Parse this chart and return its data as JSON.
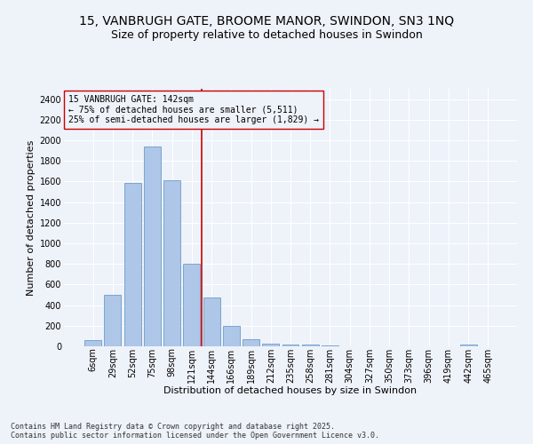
{
  "title1": "15, VANBRUGH GATE, BROOME MANOR, SWINDON, SN3 1NQ",
  "title2": "Size of property relative to detached houses in Swindon",
  "xlabel": "Distribution of detached houses by size in Swindon",
  "ylabel": "Number of detached properties",
  "annotation_line1": "15 VANBRUGH GATE: 142sqm",
  "annotation_line2": "← 75% of detached houses are smaller (5,511)",
  "annotation_line3": "25% of semi-detached houses are larger (1,829) →",
  "footer1": "Contains HM Land Registry data © Crown copyright and database right 2025.",
  "footer2": "Contains public sector information licensed under the Open Government Licence v3.0.",
  "categories": [
    "6sqm",
    "29sqm",
    "52sqm",
    "75sqm",
    "98sqm",
    "121sqm",
    "144sqm",
    "166sqm",
    "189sqm",
    "212sqm",
    "235sqm",
    "258sqm",
    "281sqm",
    "304sqm",
    "327sqm",
    "350sqm",
    "373sqm",
    "396sqm",
    "419sqm",
    "442sqm",
    "465sqm"
  ],
  "values": [
    60,
    500,
    1590,
    1940,
    1610,
    800,
    470,
    195,
    70,
    30,
    20,
    15,
    10,
    0,
    0,
    0,
    0,
    0,
    0,
    20,
    0
  ],
  "bar_color": "#aec6e8",
  "bar_edge_color": "#5a8fc0",
  "vline_color": "#cc0000",
  "vline_pos": 5.5,
  "ylim": [
    0,
    2500
  ],
  "yticks": [
    0,
    200,
    400,
    600,
    800,
    1000,
    1200,
    1400,
    1600,
    1800,
    2000,
    2200,
    2400
  ],
  "bg_color": "#eef2f9",
  "grid_color": "#ffffff",
  "title_fontsize": 10,
  "subtitle_fontsize": 9,
  "tick_fontsize": 7,
  "axis_label_fontsize": 8,
  "annotation_fontsize": 7,
  "footer_fontsize": 6
}
